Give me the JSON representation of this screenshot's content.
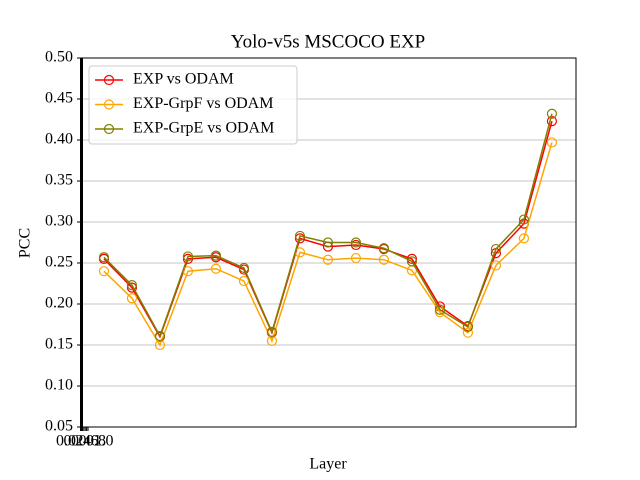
{
  "chart_data": {
    "type": "line",
    "title": "Yolo-v5s MSCOCO EXP",
    "xlabel": "Layer",
    "ylabel": "PCC",
    "x": [
      1,
      2,
      3,
      4,
      5,
      6,
      7,
      8,
      9,
      10,
      11,
      12,
      13,
      14,
      15,
      16,
      17
    ],
    "xlim": [
      0.18,
      17.86
    ],
    "x_overlay_ticks": [
      "0.0",
      "0.2",
      "0.4",
      "0.6",
      "0.8",
      "1.0"
    ],
    "ylim": [
      0.05,
      0.5
    ],
    "yticks": [
      {
        "value": 0.05,
        "label": "0.05"
      },
      {
        "value": 0.1,
        "label": "0.10"
      },
      {
        "value": 0.15,
        "label": "0.15"
      },
      {
        "value": 0.2,
        "label": "0.20"
      },
      {
        "value": 0.25,
        "label": "0.25"
      },
      {
        "value": 0.3,
        "label": "0.30"
      },
      {
        "value": 0.35,
        "label": "0.35"
      },
      {
        "value": 0.4,
        "label": "0.40"
      },
      {
        "value": 0.45,
        "label": "0.45"
      },
      {
        "value": 0.5,
        "label": "0.50"
      }
    ],
    "grid": true,
    "legend": "upper left",
    "series": [
      {
        "name": "EXP vs ODAM",
        "color": "#ff0000",
        "values": [
          0.255,
          0.22,
          0.16,
          0.255,
          0.257,
          0.242,
          0.165,
          0.28,
          0.27,
          0.272,
          0.267,
          0.255,
          0.197,
          0.173,
          0.262,
          0.298,
          0.423
        ]
      },
      {
        "name": "EXP-GrpF vs ODAM",
        "color": "#ffa500",
        "values": [
          0.24,
          0.207,
          0.15,
          0.24,
          0.243,
          0.228,
          0.155,
          0.263,
          0.254,
          0.256,
          0.254,
          0.241,
          0.19,
          0.165,
          0.247,
          0.28,
          0.397
        ]
      },
      {
        "name": "EXP-GrpE vs ODAM",
        "color": "#808000",
        "values": [
          0.257,
          0.223,
          0.161,
          0.258,
          0.259,
          0.244,
          0.166,
          0.283,
          0.275,
          0.275,
          0.268,
          0.252,
          0.193,
          0.172,
          0.267,
          0.303,
          0.432
        ]
      }
    ]
  }
}
